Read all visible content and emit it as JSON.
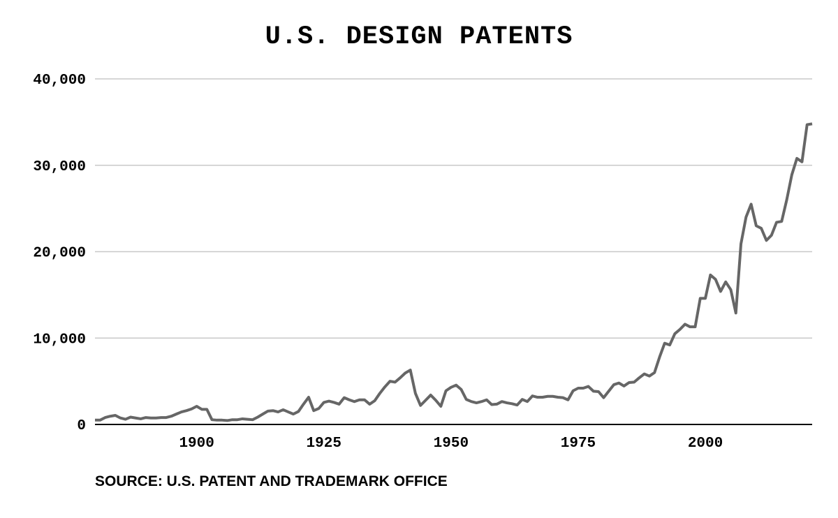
{
  "chart_data": {
    "type": "line",
    "title": "U.S. DESIGN PATENTS",
    "xlabel": "",
    "ylabel": "",
    "xlim": [
      1880,
      2021
    ],
    "ylim": [
      0,
      40000
    ],
    "y_ticks": [
      0,
      10000,
      20000,
      30000,
      40000
    ],
    "y_tick_labels": [
      "0",
      "10,000",
      "20,000",
      "30,000",
      "40,000"
    ],
    "x_ticks": [
      1900,
      1925,
      1950,
      1975,
      2000
    ],
    "x_tick_labels": [
      "1900",
      "1925",
      "1950",
      "1975",
      "2000"
    ],
    "grid": true,
    "line_color": "#666666",
    "grid_color": "#c8c8c8",
    "series": [
      {
        "x": [
          1880,
          1881,
          1882,
          1883,
          1884,
          1885,
          1886,
          1887,
          1888,
          1889,
          1890,
          1891,
          1892,
          1893,
          1894,
          1895,
          1896,
          1897,
          1898,
          1899,
          1900,
          1901,
          1902,
          1903,
          1904,
          1905,
          1906,
          1907,
          1908,
          1909,
          1910,
          1911,
          1912,
          1913,
          1914,
          1915,
          1916,
          1917,
          1918,
          1919,
          1920,
          1921,
          1922,
          1923,
          1924,
          1925,
          1926,
          1927,
          1928,
          1929,
          1930,
          1931,
          1932,
          1933,
          1934,
          1935,
          1936,
          1937,
          1938,
          1939,
          1940,
          1941,
          1942,
          1943,
          1944,
          1945,
          1946,
          1947,
          1948,
          1949,
          1950,
          1951,
          1952,
          1953,
          1954,
          1955,
          1956,
          1957,
          1958,
          1959,
          1960,
          1961,
          1962,
          1963,
          1964,
          1965,
          1966,
          1967,
          1968,
          1969,
          1970,
          1971,
          1972,
          1973,
          1974,
          1975,
          1976,
          1977,
          1978,
          1979,
          1980,
          1981,
          1982,
          1983,
          1984,
          1985,
          1986,
          1987,
          1988,
          1989,
          1990,
          1991,
          1992,
          1993,
          1994,
          1995,
          1996,
          1997,
          1998,
          1999,
          2000,
          2001,
          2002,
          2003,
          2004,
          2005,
          2006,
          2007,
          2008,
          2009,
          2010,
          2011,
          2012,
          2013,
          2014,
          2015,
          2016,
          2017,
          2018,
          2019,
          2020,
          2021
        ],
        "values": [
          500,
          500,
          800,
          950,
          1050,
          750,
          600,
          850,
          750,
          650,
          800,
          750,
          750,
          800,
          800,
          950,
          1200,
          1450,
          1600,
          1800,
          2100,
          1750,
          1750,
          550,
          500,
          500,
          450,
          550,
          550,
          650,
          600,
          550,
          850,
          1200,
          1550,
          1600,
          1450,
          1700,
          1450,
          1200,
          1500,
          2350,
          3150,
          1600,
          1850,
          2550,
          2700,
          2550,
          2350,
          3100,
          2850,
          2650,
          2850,
          2850,
          2350,
          2750,
          3600,
          4350,
          5000,
          4900,
          5400,
          5950,
          6300,
          3600,
          2200,
          2800,
          3400,
          2800,
          2100,
          3900,
          4300,
          4550,
          4050,
          2900,
          2650,
          2500,
          2650,
          2850,
          2300,
          2350,
          2650,
          2500,
          2400,
          2250,
          2900,
          2650,
          3300,
          3150,
          3150,
          3250,
          3250,
          3150,
          3100,
          2850,
          3900,
          4200,
          4200,
          4400,
          3850,
          3800,
          3100,
          3850,
          4600,
          4800,
          4450,
          4850,
          4900,
          5400,
          5850,
          5600,
          6000,
          7800,
          9400,
          9200,
          10500,
          11000,
          11600,
          11300,
          11300,
          14600,
          14600,
          17300,
          16800,
          15400,
          16500,
          15600,
          12900,
          20900,
          24000,
          25500,
          23000,
          22700,
          21300,
          21900,
          23400,
          23500,
          26000,
          28900,
          30800,
          30400,
          34700,
          34800
        ]
      }
    ],
    "source_note": "SOURCE: U.S. PATENT AND TRADEMARK OFFICE"
  }
}
